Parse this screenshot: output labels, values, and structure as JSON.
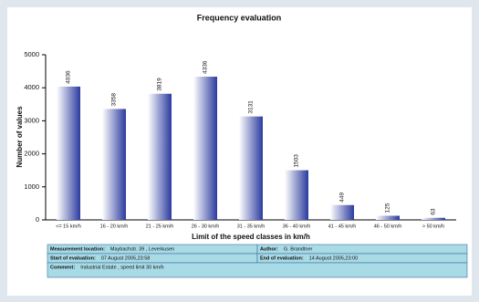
{
  "chart_data": {
    "type": "bar",
    "title": "Frequency evaluation",
    "x_label": "Limit of the speed classes in km/h",
    "y_label": "Number of values",
    "categories": [
      "<= 15 km/h",
      "16 - 20 km/h",
      "21 - 25 km/h",
      "26 - 30 km/h",
      "31 - 35 km/h",
      "36 - 40 km/h",
      "41 - 45 km/h",
      "46 - 50 km/h",
      "> 50 km/h"
    ],
    "values": [
      4036,
      3358,
      3819,
      4336,
      3131,
      1503,
      449,
      125,
      63
    ],
    "color": "#2b3b9e",
    "ylim": [
      0,
      5000
    ],
    "yticks": [
      0,
      1000,
      2000,
      3000,
      4000,
      5000
    ],
    "grid": false
  },
  "info_table": {
    "rows": [
      [
        {
          "label": "Measurement location:",
          "value": "Maybachstr. 39 , Leverkusen"
        },
        {
          "label": "Author:",
          "value": "G. Brandtner"
        }
      ],
      [
        {
          "label": "Start of evaluation:",
          "value": "07 August 2005,23:58"
        },
        {
          "label": "End of evaluation:",
          "value": "14 August 2005,23:00"
        }
      ],
      [
        {
          "label": "Comment:",
          "value": "Industrial Estate , speed limit 30 km/h"
        }
      ]
    ]
  }
}
